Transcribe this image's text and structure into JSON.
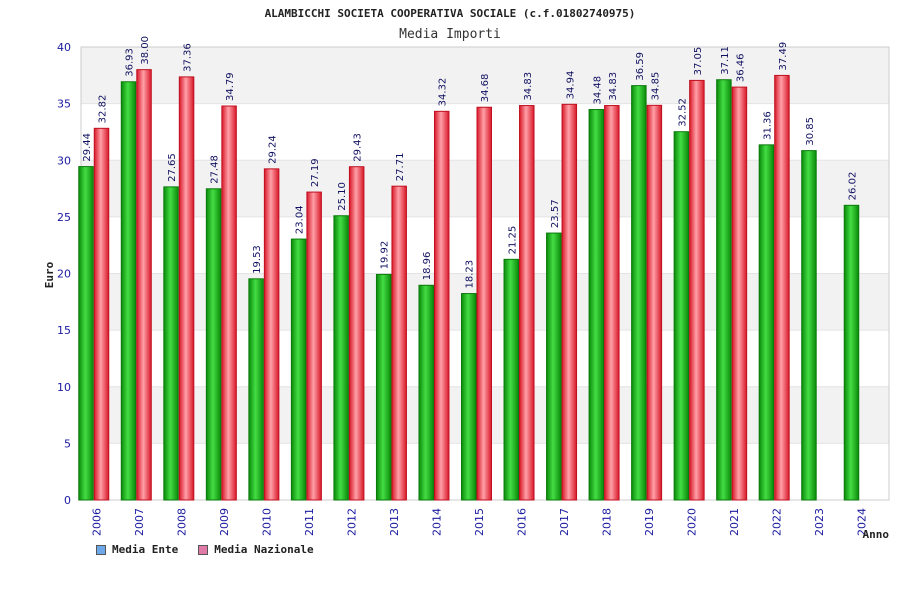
{
  "chart_data": {
    "type": "bar",
    "title": "ALAMBICCHI SOCIETA COOPERATIVA SOCIALE (c.f.01802740975)",
    "subtitle": "Media Importi",
    "xlabel": "Anno",
    "ylabel": "Euro",
    "ylim": [
      0,
      40
    ],
    "yticks": [
      "0",
      "5",
      "10",
      "15",
      "20",
      "25",
      "30",
      "35",
      "40"
    ],
    "categories": [
      "2006",
      "2007",
      "2008",
      "2009",
      "2010",
      "2011",
      "2012",
      "2013",
      "2014",
      "2015",
      "2016",
      "2017",
      "2018",
      "2019",
      "2020",
      "2021",
      "2022",
      "2023",
      "2024"
    ],
    "series": [
      {
        "name": "Media Ente",
        "color": "#22aa22",
        "values": [
          29.44,
          36.93,
          27.65,
          27.48,
          19.53,
          23.04,
          25.1,
          19.92,
          18.96,
          18.23,
          21.25,
          23.57,
          34.48,
          36.59,
          32.52,
          37.11,
          31.36,
          30.85,
          26.02
        ],
        "labels": [
          "29.44",
          "36.93",
          "27.65",
          "27.48",
          "19.53",
          "23.04",
          "25.10",
          "19.92",
          "18.96",
          "18.23",
          "21.25",
          "23.57",
          "34.48",
          "36.59",
          "32.52",
          "37.11",
          "31.36",
          "30.85",
          "26.02"
        ]
      },
      {
        "name": "Media Nazionale",
        "color": "#e83040",
        "values": [
          32.82,
          38.0,
          37.36,
          34.79,
          29.24,
          27.19,
          29.43,
          27.71,
          34.32,
          34.68,
          34.83,
          34.94,
          34.83,
          34.85,
          37.05,
          36.46,
          37.49,
          null,
          null
        ],
        "labels": [
          "32.82",
          "38.00",
          "37.36",
          "34.79",
          "29.24",
          "27.19",
          "29.43",
          "27.71",
          "34.32",
          "34.68",
          "34.83",
          "34.94",
          "34.83",
          "34.85",
          "37.05",
          "36.46",
          "37.49",
          null,
          null
        ]
      }
    ],
    "legend": [
      {
        "name": "Media Ente",
        "color": "#6ea8e8"
      },
      {
        "name": "Media Nazionale",
        "color": "#e07aa8"
      }
    ]
  }
}
